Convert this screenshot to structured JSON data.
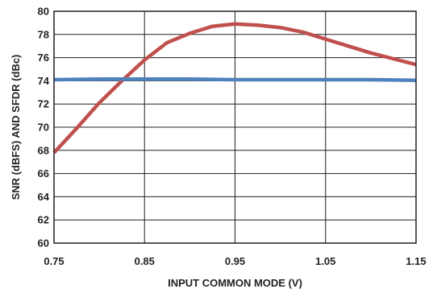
{
  "chart_data": {
    "type": "line",
    "title": "",
    "xlabel": "INPUT COMMON MODE (V)",
    "ylabel": "SNR (dBFS) AND SFDR (dBc)",
    "xlim": [
      0.75,
      1.15
    ],
    "ylim": [
      60,
      80
    ],
    "x_ticks": [
      "0.75",
      "0.85",
      "0.95",
      "1.05",
      "1.15"
    ],
    "y_ticks": [
      "60",
      "62",
      "64",
      "66",
      "68",
      "70",
      "72",
      "74",
      "76",
      "78",
      "80"
    ],
    "grid": true,
    "legend": "none",
    "series": [
      {
        "color": "#c0504d",
        "x": [
          0.75,
          0.775,
          0.8,
          0.825,
          0.85,
          0.875,
          0.9,
          0.925,
          0.95,
          0.975,
          1.0,
          1.025,
          1.05,
          1.075,
          1.1,
          1.125,
          1.15
        ],
        "y": [
          67.8,
          69.9,
          72.1,
          74.0,
          75.8,
          77.3,
          78.1,
          78.7,
          78.9,
          78.8,
          78.6,
          78.2,
          77.6,
          77.0,
          76.4,
          75.9,
          75.4
        ]
      },
      {
        "color": "#4f81bd",
        "x": [
          0.75,
          0.8,
          0.85,
          0.9,
          0.95,
          1.0,
          1.05,
          1.1,
          1.15
        ],
        "y": [
          74.1,
          74.15,
          74.15,
          74.15,
          74.1,
          74.1,
          74.1,
          74.1,
          74.05
        ]
      }
    ]
  }
}
